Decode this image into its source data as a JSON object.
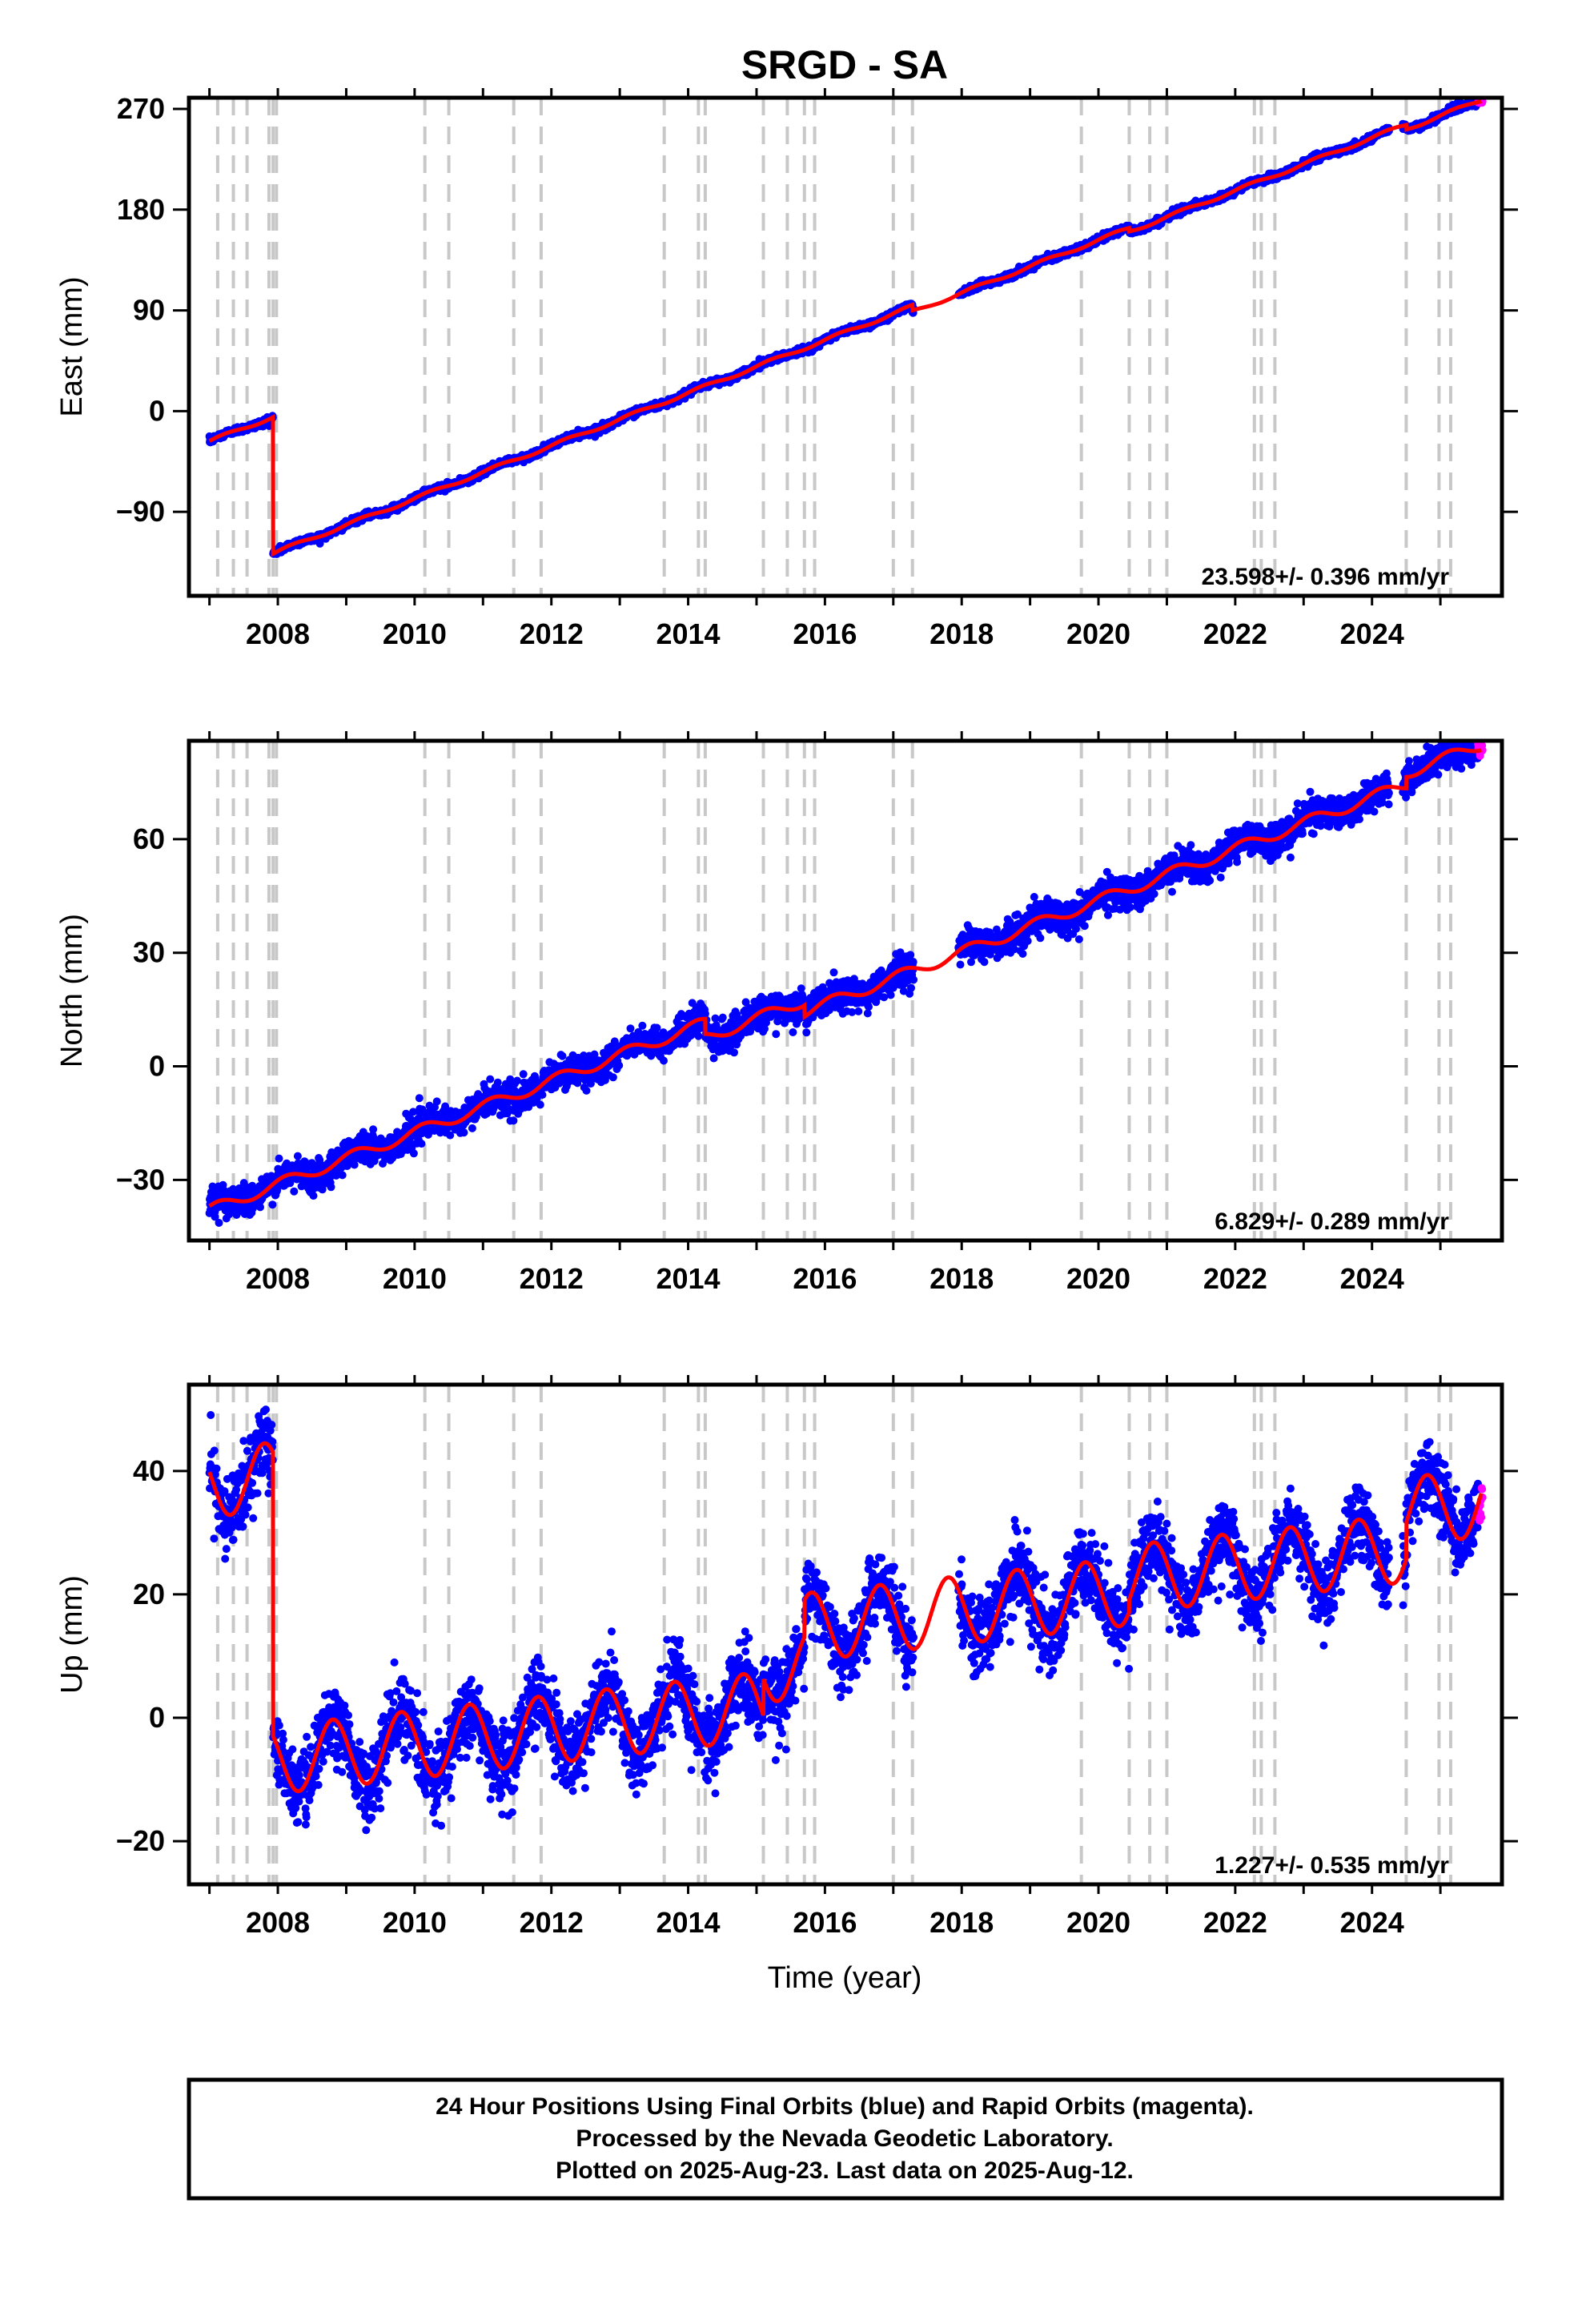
{
  "chart_data": {
    "type": "scatter",
    "title": "SRGD - SA",
    "xlabel": "Time (year)",
    "x_ticks": [
      "2008",
      "2010",
      "2012",
      "2014",
      "2016",
      "2018",
      "2020",
      "2022",
      "2024"
    ],
    "xlim": [
      2006.7,
      2025.9
    ],
    "colors": {
      "final_orbits": "#0000ff",
      "rapid_orbits": "#ff00ff",
      "model_fit": "#ff0000",
      "steps": "#c8c8c8"
    },
    "steps": [
      2007.12,
      2007.35,
      2007.55,
      2007.87,
      2007.93,
      2007.98,
      2010.15,
      2010.5,
      2011.45,
      2011.85,
      2013.65,
      2014.15,
      2014.25,
      2015.1,
      2015.45,
      2015.7,
      2015.85,
      2017.0,
      2017.28,
      2019.75,
      2020.45,
      2020.75,
      2021.0,
      2022.28,
      2022.38,
      2022.58,
      2024.5,
      2024.98,
      2025.15
    ],
    "panels": [
      {
        "component": "East",
        "ylabel": "East (mm)",
        "y_ticks": [
          "270",
          "180",
          "90",
          "0",
          "−90"
        ],
        "ylim": [
          -165,
          280
        ],
        "rate": "23.598+/- 0.396 mm/yr",
        "model": {
          "origin_year": 2007.0,
          "intercept": -27,
          "rate": 23.598,
          "annual_amplitude": 1.5,
          "annual_phase": 0.2,
          "offsets": [
            [
              2007.93,
              -122
            ],
            [
              2017.28,
              -5
            ],
            [
              2020.45,
              -3
            ],
            [
              2024.5,
              -4
            ]
          ]
        },
        "noise": 1.5,
        "rapid_range": [
          2025.55,
          2025.62
        ]
      },
      {
        "component": "North",
        "ylabel": "North (mm)",
        "y_ticks": [
          "60",
          "30",
          "0",
          "−30"
        ],
        "ylim": [
          -46,
          86
        ],
        "rate": "6.829+/- 0.289 mm/yr",
        "model": {
          "origin_year": 2007.0,
          "intercept": -38,
          "rate": 6.829,
          "annual_amplitude": 1.5,
          "annual_phase": 0.8,
          "offsets": [
            [
              2014.25,
              -4
            ],
            [
              2015.7,
              -3
            ],
            [
              2024.5,
              3
            ]
          ]
        },
        "noise": 2.0,
        "rapid_range": [
          2025.55,
          2025.62
        ]
      },
      {
        "component": "Up",
        "ylabel": "Up (mm)",
        "y_ticks": [
          "40",
          "20",
          "0",
          "−20"
        ],
        "ylim": [
          -27,
          54
        ],
        "rate": "1.227+/- 0.535 mm/yr",
        "model": {
          "origin_year": 2007.0,
          "intercept": 38,
          "rate": 1.227,
          "annual_amplitude": 5.5,
          "annual_phase": 2.8,
          "offsets": [
            [
              2007.93,
              -46
            ],
            [
              2015.1,
              6
            ],
            [
              2015.7,
              6
            ],
            [
              2020.45,
              2
            ],
            [
              2024.5,
              6
            ]
          ]
        },
        "noise": 3.0,
        "rapid_range": [
          2025.55,
          2025.62
        ]
      }
    ]
  },
  "footer": {
    "line1": "24 Hour Positions Using Final Orbits (blue) and Rapid Orbits (magenta).",
    "line2": "Processed by the Nevada Geodetic Laboratory.",
    "line3": "Plotted on 2025-Aug-23. Last data on 2025-Aug-12."
  }
}
